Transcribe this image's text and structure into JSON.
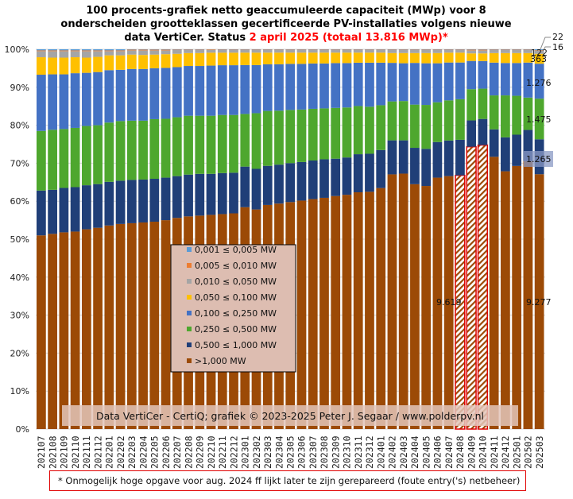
{
  "chart_data": {
    "type": "bar",
    "stacked": true,
    "percent_stacked": true,
    "title_lines": [
      "100 procents-grafiek netto geaccumuleerde capaciteit (MWp) voor 8",
      "onderscheiden grootteklassen gecertificeerde PV-installaties volgens nieuwe"
    ],
    "title_line3_prefix": "data VertiCer. Status ",
    "title_line3_highlight": "2 april 2025 (totaal 13.816 MWp)*",
    "xlabel": "",
    "ylabel": "",
    "ylim": [
      0,
      100
    ],
    "yticks": [
      "0%",
      "10%",
      "20%",
      "30%",
      "40%",
      "50%",
      "60%",
      "70%",
      "80%",
      "90%",
      "100%"
    ],
    "grid": true,
    "legend_position": "center-left",
    "categories": [
      "202107",
      "202108",
      "202109",
      "202110",
      "202111",
      "202112",
      "202201",
      "202202",
      "202203",
      "202204",
      "202205",
      "202206",
      "202207",
      "202208",
      "202209",
      "202210",
      "202211",
      "202212",
      "202301",
      "202302",
      "202303",
      "202304",
      "202305",
      "202306",
      "202307",
      "202308",
      "202309",
      "202310",
      "202311",
      "202312",
      "202401",
      "202402",
      "202403",
      "202404",
      "202405",
      "202406",
      "202407",
      "202408",
      "202409",
      "202410",
      "202411",
      "202412",
      "202501",
      "202502",
      "202503"
    ],
    "flagged_categories": [
      "202408",
      "202409",
      "202410"
    ],
    "series": [
      {
        "name": ">1,000 MW",
        "color": "#9c4a06",
        "values": [
          51.0,
          51.4,
          51.8,
          52.0,
          52.6,
          53.0,
          53.6,
          54.0,
          54.2,
          54.4,
          54.6,
          55.0,
          55.6,
          56.0,
          56.2,
          56.4,
          56.6,
          56.8,
          59.0,
          58.4,
          59.6,
          60.2,
          60.6,
          61.0,
          61.4,
          61.8,
          62.4,
          62.8,
          63.4,
          63.6,
          64.6,
          67.4,
          67.6,
          64.6,
          64.2,
          66.4,
          66.8,
          67.0,
          75.0,
          75.0,
          71.4,
          67.6,
          69.0,
          70.4,
          67.1
        ]
      },
      {
        "name": "0,500 ≤ 1,000 MW",
        "color": "#203f78",
        "values": [
          11.8,
          11.6,
          11.7,
          11.7,
          11.6,
          11.5,
          11.5,
          11.4,
          11.4,
          11.3,
          11.3,
          11.2,
          11.0,
          11.0,
          11.0,
          10.8,
          10.8,
          10.7,
          10.8,
          10.8,
          10.4,
          10.4,
          10.4,
          10.3,
          10.3,
          10.3,
          10.0,
          10.0,
          10.2,
          10.2,
          10.2,
          9.0,
          8.8,
          9.6,
          9.8,
          9.4,
          9.4,
          9.4,
          7.0,
          6.9,
          7.2,
          8.9,
          8.2,
          8.2,
          9.2
        ]
      },
      {
        "name": "0,250 ≤ 0,500 MW",
        "color": "#4ea72e",
        "values": [
          15.7,
          15.8,
          15.5,
          15.6,
          15.6,
          15.5,
          15.6,
          15.7,
          15.6,
          15.5,
          15.7,
          15.5,
          15.5,
          15.5,
          15.3,
          15.3,
          15.3,
          15.2,
          14.0,
          14.8,
          14.6,
          14.4,
          14.2,
          14.0,
          13.8,
          13.6,
          13.6,
          13.4,
          12.9,
          12.6,
          12.0,
          10.3,
          10.4,
          11.4,
          11.6,
          10.5,
          10.6,
          10.7,
          8.3,
          8.0,
          8.9,
          11.0,
          10.2,
          8.5,
          10.7
        ]
      },
      {
        "name": "0,100 ≤ 0,250 MW",
        "color": "#4472c4",
        "values": [
          14.8,
          14.6,
          14.4,
          14.4,
          14.0,
          14.0,
          13.8,
          13.5,
          13.6,
          13.6,
          13.4,
          13.4,
          13.2,
          13.1,
          13.1,
          13.2,
          13.1,
          13.1,
          13.0,
          12.8,
          12.4,
          12.4,
          12.3,
          12.2,
          12.1,
          12.0,
          12.0,
          11.9,
          11.6,
          11.8,
          11.4,
          10.2,
          10.0,
          11.0,
          11.0,
          10.3,
          10.0,
          9.7,
          7.5,
          7.3,
          8.6,
          8.5,
          8.6,
          9.2,
          9.2
        ]
      },
      {
        "name": "0,050 ≤ 0,100 MW",
        "color": "#ffc000",
        "values": [
          4.6,
          4.4,
          4.4,
          4.2,
          4.0,
          4.0,
          3.9,
          3.8,
          3.8,
          3.7,
          3.6,
          3.6,
          3.5,
          3.4,
          3.4,
          3.4,
          3.3,
          3.3,
          3.3,
          3.3,
          3.1,
          3.1,
          3.0,
          3.0,
          2.9,
          2.9,
          2.8,
          2.8,
          2.7,
          2.7,
          2.7,
          2.6,
          2.7,
          2.6,
          2.7,
          2.7,
          2.6,
          2.6,
          2.0,
          2.0,
          2.5,
          2.6,
          2.6,
          2.5,
          2.6
        ]
      },
      {
        "name": "0,010 ≤ 0,050 MW",
        "color": "#a5a5a5",
        "values": [
          1.6,
          1.7,
          1.7,
          1.6,
          1.7,
          1.5,
          1.1,
          1.1,
          1.1,
          1.2,
          1.1,
          1.0,
          1.0,
          0.8,
          0.8,
          0.8,
          0.7,
          0.7,
          0.7,
          0.7,
          0.7,
          0.7,
          0.7,
          0.7,
          0.7,
          0.7,
          0.7,
          0.7,
          0.7,
          0.7,
          0.7,
          0.8,
          0.8,
          0.8,
          0.8,
          0.8,
          0.7,
          0.7,
          0.8,
          0.8,
          0.8,
          0.8,
          0.8,
          0.8,
          0.9
        ]
      },
      {
        "name": "0,005 ≤ 0,010 MW",
        "color": "#ed7d31",
        "values": [
          0.2,
          0.2,
          0.2,
          0.2,
          0.2,
          0.2,
          0.2,
          0.2,
          0.2,
          0.2,
          0.2,
          0.2,
          0.1,
          0.1,
          0.1,
          0.1,
          0.1,
          0.1,
          0.1,
          0.1,
          0.1,
          0.1,
          0.1,
          0.1,
          0.1,
          0.1,
          0.1,
          0.1,
          0.1,
          0.1,
          0.1,
          0.1,
          0.1,
          0.1,
          0.1,
          0.1,
          0.1,
          0.1,
          0.2,
          0.2,
          0.1,
          0.1,
          0.1,
          0.1,
          0.1
        ]
      },
      {
        "name": "0,001 ≤ 0,005 MW",
        "color": "#5b9bd5",
        "values": [
          0.3,
          0.3,
          0.3,
          0.3,
          0.3,
          0.3,
          0.3,
          0.3,
          0.1,
          0.1,
          0.1,
          0.1,
          0.1,
          0.1,
          0.1,
          0.0,
          0.1,
          0.1,
          0.1,
          0.1,
          0.1,
          0.1,
          0.1,
          0.1,
          0.1,
          0.1,
          0.1,
          0.1,
          0.1,
          0.1,
          0.1,
          0.1,
          0.1,
          0.1,
          0.1,
          0.1,
          0.1,
          0.1,
          0.1,
          0.1,
          0.1,
          0.1,
          0.1,
          0.1,
          0.2
        ]
      }
    ],
    "legend_order": [
      "0,001 ≤  0,005 MW",
      "0,005 ≤  0,010 MW",
      "0,010 ≤  0,050 MW",
      "0,050 ≤  0,100 MW",
      "0,100 ≤  0,250 MW",
      "0,250 ≤  0,500 MW",
      "0,500 ≤  1,000 MW",
      ">1,000 MW"
    ],
    "annotations_last_bar_mw": {
      ">1,000 MW": "9.277",
      "0,500 ≤ 1,000 MW": "1.265",
      "0,250 ≤ 0,500 MW": "1.475",
      "0,100 ≤ 0,250 MW": "1.276",
      "0,050 ≤ 0,100 MW": "363",
      "0,010 ≤ 0,050 MW": "122",
      "0,005 ≤ 0,010 MW": "16",
      "0,001 ≤ 0,005 MW": "22"
    },
    "annotation_flagged": "9.619",
    "credit": "Data VertiCer  - CertiQ;  grafiek  © 2023-2025  Peter J. Segaar / www.polderpv.nl",
    "footnote": "* Onmogelijk hoge opgave voor aug. 2024 ff lijkt later te zijn gerepareerd (foute entry('s) netbeheer)"
  }
}
